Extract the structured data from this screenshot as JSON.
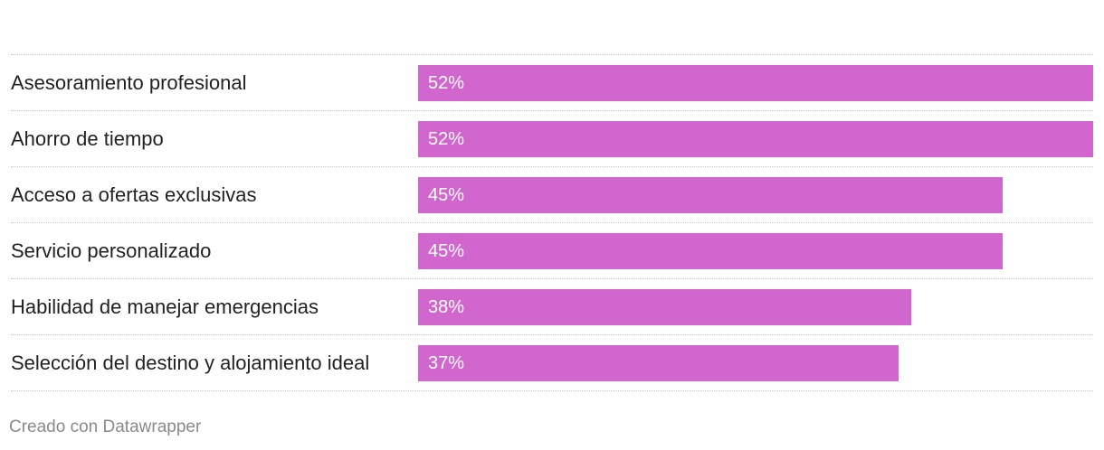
{
  "chart_data": {
    "type": "bar",
    "orientation": "horizontal",
    "categories": [
      "Asesoramiento profesional",
      "Ahorro de tiempo",
      "Acceso a ofertas exclusivas",
      "Servicio personalizado",
      "Habilidad de manejar emergencias",
      "Selección del destino y alojamiento ideal"
    ],
    "values": [
      52,
      52,
      45,
      45,
      38,
      37
    ],
    "value_labels": [
      "52%",
      "52%",
      "45%",
      "45%",
      "38%",
      "37%"
    ],
    "unit": "%",
    "xlim": [
      0,
      52
    ],
    "grid": false,
    "bar_color": "#d166ce",
    "value_label_color": "#ffffff"
  },
  "footer": {
    "credit": "Creado con Datawrapper"
  }
}
